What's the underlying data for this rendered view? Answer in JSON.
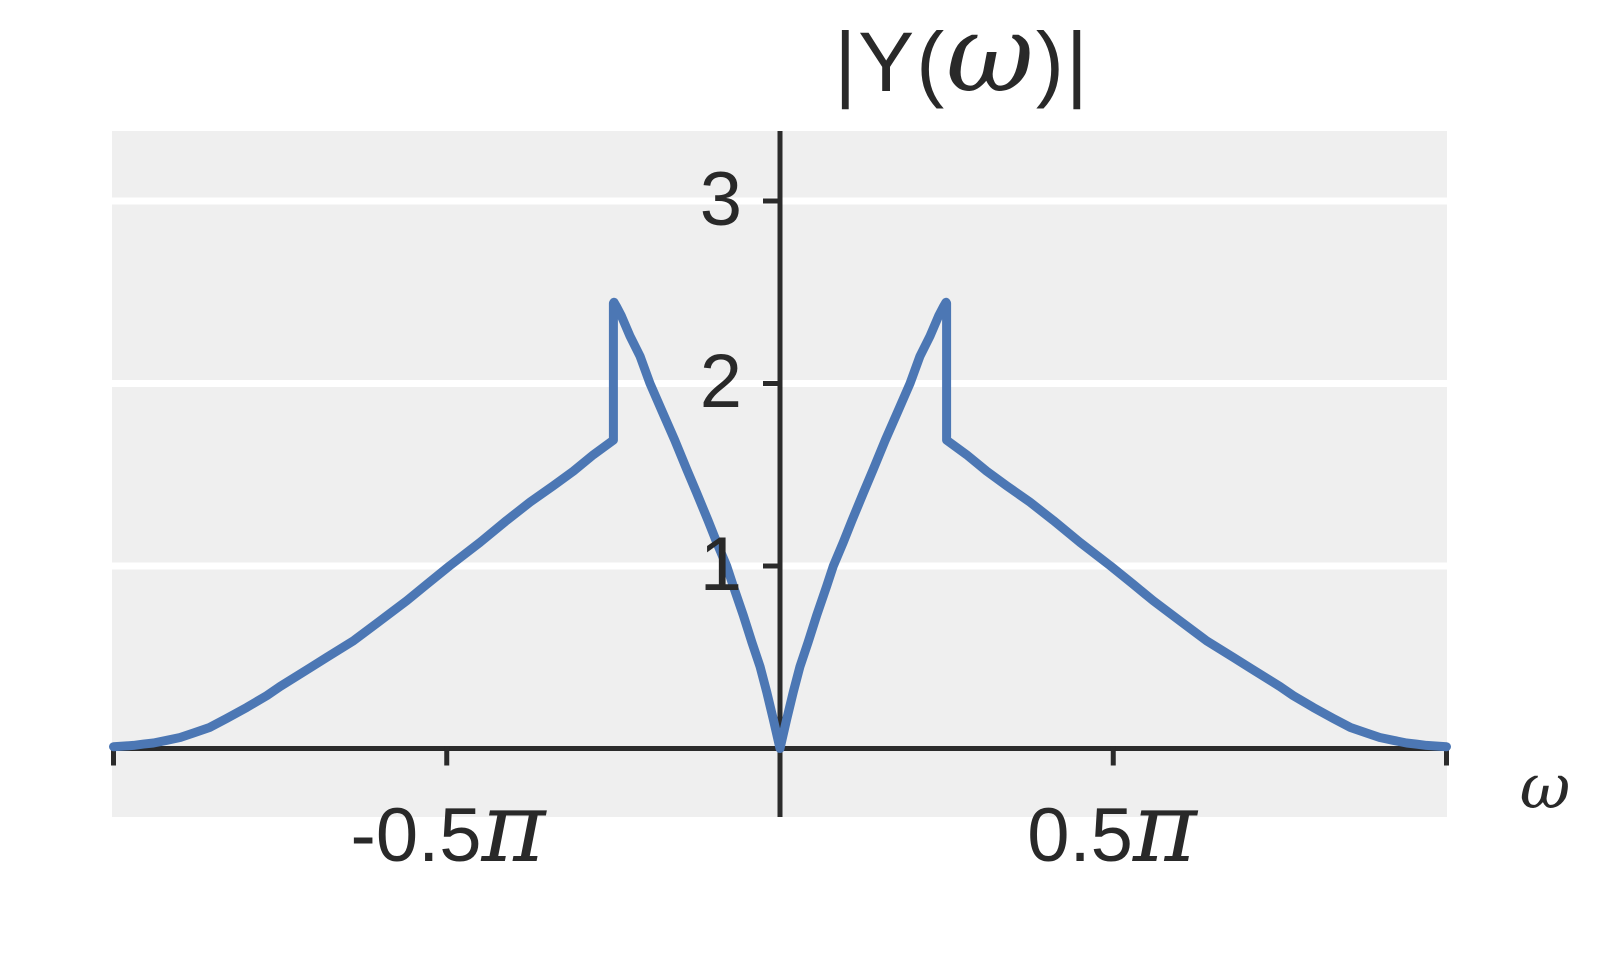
{
  "title": {
    "prefix": "|Y(",
    "omega": "ω",
    "suffix": ")|"
  },
  "axes": {
    "x_label": "ω",
    "y_ticks": [
      {
        "value": 3,
        "label": "3"
      },
      {
        "value": 2,
        "label": "2"
      },
      {
        "value": 1,
        "label": "1"
      }
    ],
    "x_ticks": [
      {
        "value_pi": -0.5,
        "number": "-0.5",
        "pi": "π"
      },
      {
        "value_pi": 0.5,
        "number": "0.5",
        "pi": "π"
      }
    ],
    "x_edge_tick_values_pi": [
      -1,
      1
    ]
  },
  "colors": {
    "page_bg": "#ffffff",
    "plot_bg": "#efefef",
    "grid": "#ffffff",
    "axis": "#2b2b2b",
    "text": "#292929",
    "curve": "#4c77b4"
  },
  "chart_data": {
    "type": "line",
    "title": "|Y(ω)|",
    "xlabel": "ω",
    "ylabel": "",
    "x_units": "multiples of π (radians/sample)",
    "xlim_pi": [
      -1.0,
      1.0
    ],
    "ylim": [
      -0.38,
      3.39
    ],
    "grid": "horizontal gridlines at y = 1, 2, 3",
    "legend": "none",
    "description": "Magnitude spectrum |Y(ω)|, even-symmetric about ω=0; value 0 at ω=0, rises to peak ≈2.44 just inside |ω|=0.25π, jumps discontinuously down to ≈1.69 at |ω|=0.25π, then decays smoothly to ≈0 at |ω|=π.",
    "discontinuities_pi": [
      -0.25,
      0.25
    ],
    "peak_value": 2.44,
    "jump_lower_value": 1.69,
    "points_pi_units": [
      [
        -1.0,
        0.01
      ],
      [
        -0.97,
        0.017
      ],
      [
        -0.955,
        0.024
      ],
      [
        -0.94,
        0.03
      ],
      [
        -0.92,
        0.045
      ],
      [
        -0.9,
        0.06
      ],
      [
        -0.88,
        0.085
      ],
      [
        -0.856,
        0.115
      ],
      [
        -0.83,
        0.165
      ],
      [
        -0.8,
        0.225
      ],
      [
        -0.77,
        0.29
      ],
      [
        -0.75,
        0.34
      ],
      [
        -0.706,
        0.44
      ],
      [
        -0.68,
        0.5
      ],
      [
        -0.64,
        0.59
      ],
      [
        -0.6,
        0.7
      ],
      [
        -0.56,
        0.81
      ],
      [
        -0.53,
        0.9
      ],
      [
        -0.496,
        1.0
      ],
      [
        -0.45,
        1.13
      ],
      [
        -0.41,
        1.25
      ],
      [
        -0.375,
        1.35
      ],
      [
        -0.34,
        1.44
      ],
      [
        -0.31,
        1.52
      ],
      [
        -0.28,
        1.61
      ],
      [
        -0.25,
        1.69
      ],
      [
        -0.25,
        2.44
      ],
      [
        -0.249,
        2.445
      ],
      [
        -0.245,
        2.42
      ],
      [
        -0.238,
        2.37
      ],
      [
        -0.225,
        2.26
      ],
      [
        -0.21,
        2.15
      ],
      [
        -0.195,
        2.0
      ],
      [
        -0.176,
        1.84
      ],
      [
        -0.158,
        1.69
      ],
      [
        -0.14,
        1.53
      ],
      [
        -0.125,
        1.4
      ],
      [
        -0.108,
        1.25
      ],
      [
        -0.095,
        1.13
      ],
      [
        -0.08,
        1.0
      ],
      [
        -0.07,
        0.89
      ],
      [
        -0.055,
        0.73
      ],
      [
        -0.042,
        0.58
      ],
      [
        -0.03,
        0.45
      ],
      [
        -0.02,
        0.31
      ],
      [
        -0.01,
        0.16
      ],
      [
        0.0,
        0.0
      ],
      [
        0.01,
        0.16
      ],
      [
        0.02,
        0.31
      ],
      [
        0.03,
        0.45
      ],
      [
        0.042,
        0.58
      ],
      [
        0.055,
        0.73
      ],
      [
        0.07,
        0.89
      ],
      [
        0.08,
        1.0
      ],
      [
        0.095,
        1.13
      ],
      [
        0.108,
        1.25
      ],
      [
        0.125,
        1.4
      ],
      [
        0.14,
        1.53
      ],
      [
        0.158,
        1.69
      ],
      [
        0.176,
        1.84
      ],
      [
        0.195,
        2.0
      ],
      [
        0.21,
        2.15
      ],
      [
        0.225,
        2.26
      ],
      [
        0.238,
        2.37
      ],
      [
        0.245,
        2.42
      ],
      [
        0.249,
        2.445
      ],
      [
        0.25,
        2.44
      ],
      [
        0.25,
        1.69
      ],
      [
        0.28,
        1.61
      ],
      [
        0.31,
        1.52
      ],
      [
        0.34,
        1.44
      ],
      [
        0.375,
        1.35
      ],
      [
        0.41,
        1.25
      ],
      [
        0.45,
        1.13
      ],
      [
        0.496,
        1.0
      ],
      [
        0.53,
        0.9
      ],
      [
        0.56,
        0.81
      ],
      [
        0.6,
        0.7
      ],
      [
        0.64,
        0.59
      ],
      [
        0.68,
        0.5
      ],
      [
        0.706,
        0.44
      ],
      [
        0.75,
        0.34
      ],
      [
        0.77,
        0.29
      ],
      [
        0.8,
        0.225
      ],
      [
        0.83,
        0.165
      ],
      [
        0.856,
        0.115
      ],
      [
        0.88,
        0.085
      ],
      [
        0.9,
        0.06
      ],
      [
        0.92,
        0.045
      ],
      [
        0.94,
        0.03
      ],
      [
        0.955,
        0.024
      ],
      [
        0.97,
        0.017
      ],
      [
        1.0,
        0.01
      ]
    ]
  }
}
